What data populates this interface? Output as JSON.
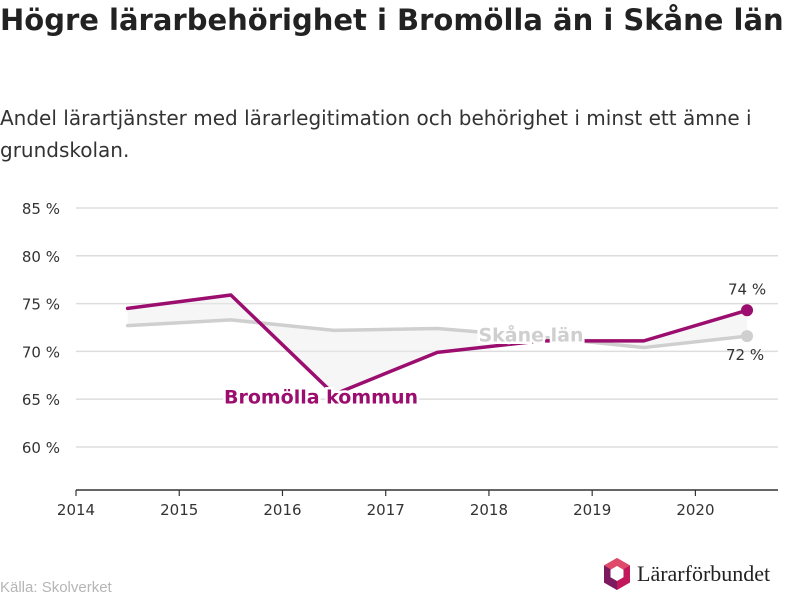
{
  "title": "Högre lärarbehörighet i Bromölla än i Skåne län",
  "subtitle": "Andel lärartjänster med lärarlegitimation och behörighet i minst ett ämne i grundskolan.",
  "source": "Källa: Skolverket",
  "brand": {
    "name": "Lärarförbundet",
    "icon": "lararforbundet-logo-icon"
  },
  "colors": {
    "bromolla": "#9b0d6e",
    "skane": "#cfcfcf",
    "grid": "#dddddd",
    "axis": "#333333"
  },
  "chart_data": {
    "type": "line",
    "title": "Högre lärarbehörighet i Bromölla än i Skåne län",
    "subtitle": "Andel lärartjänster med lärarlegitimation och behörighet i minst ett ämne i grundskolan.",
    "x": [
      2014.5,
      2015.5,
      2016.5,
      2017.5,
      2018.5,
      2019.5,
      2020.5
    ],
    "xlim": [
      2014,
      2020.8
    ],
    "x_ticks": [
      2014,
      2015,
      2016,
      2017,
      2018,
      2019,
      2020
    ],
    "x_tick_labels": [
      "2014",
      "2015",
      "2016",
      "2017",
      "2018",
      "2019",
      "2020"
    ],
    "ylim": [
      55.5,
      85
    ],
    "y_ticks": [
      60,
      65,
      70,
      75,
      80,
      85
    ],
    "y_tick_labels": [
      "60 %",
      "65 %",
      "70 %",
      "75 %",
      "80 %",
      "85 %"
    ],
    "grid": true,
    "series": [
      {
        "name": "Skåne län",
        "values": [
          72.7,
          73.3,
          72.2,
          72.4,
          71.5,
          70.4,
          71.6
        ],
        "end_label": "72 %"
      },
      {
        "name": "Bromölla kommun",
        "values": [
          74.5,
          75.9,
          65.5,
          69.9,
          71.1,
          71.1,
          74.3
        ],
        "end_label": "74 %"
      }
    ]
  }
}
